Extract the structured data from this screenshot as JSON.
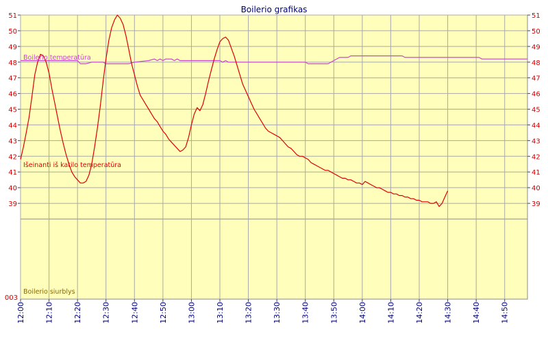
{
  "chart_data": {
    "type": "line",
    "title": "Boilerio grafikas",
    "x_ticks": [
      "12:00",
      "12:10",
      "12:20",
      "12:30",
      "12:40",
      "12:50",
      "13:00",
      "13:10",
      "13:20",
      "13:30",
      "13:40",
      "13:50",
      "14:00",
      "14:10",
      "14:20",
      "14:30",
      "14:40",
      "14:50"
    ],
    "x_range": [
      "12:00",
      "14:58"
    ],
    "y_ticks": [
      39,
      40,
      41,
      42,
      43,
      44,
      45,
      46,
      47,
      48,
      49,
      50,
      51
    ],
    "y_range": [
      38,
      51
    ],
    "lower_panel_label": "003",
    "grid": true,
    "series": [
      {
        "name": "Boilerio temperatūra",
        "color": "#cc44cc",
        "points": [
          [
            "12:00",
            48.1
          ],
          [
            "12:20",
            48.1
          ],
          [
            "12:21",
            47.9
          ],
          [
            "12:23",
            47.9
          ],
          [
            "12:25",
            48.0
          ],
          [
            "12:29",
            48.0
          ],
          [
            "12:30",
            47.9
          ],
          [
            "12:38",
            47.9
          ],
          [
            "12:40",
            48.0
          ],
          [
            "12:45",
            48.1
          ],
          [
            "12:47",
            48.2
          ],
          [
            "12:48",
            48.1
          ],
          [
            "12:49",
            48.2
          ],
          [
            "12:50",
            48.1
          ],
          [
            "12:51",
            48.2
          ],
          [
            "12:53",
            48.2
          ],
          [
            "12:54",
            48.1
          ],
          [
            "12:55",
            48.2
          ],
          [
            "12:56",
            48.1
          ],
          [
            "13:10",
            48.1
          ],
          [
            "13:11",
            48.0
          ],
          [
            "13:12",
            48.1
          ],
          [
            "13:13",
            48.0
          ],
          [
            "13:40",
            48.0
          ],
          [
            "13:41",
            47.9
          ],
          [
            "13:48",
            47.9
          ],
          [
            "13:50",
            48.1
          ],
          [
            "13:52",
            48.3
          ],
          [
            "13:55",
            48.3
          ],
          [
            "13:56",
            48.4
          ],
          [
            "14:10",
            48.4
          ],
          [
            "14:14",
            48.4
          ],
          [
            "14:15",
            48.3
          ],
          [
            "14:41",
            48.3
          ],
          [
            "14:42",
            48.2
          ],
          [
            "14:58",
            48.2
          ]
        ]
      },
      {
        "name": "Išeinanti iš katilo temperatūra",
        "color": "#dd0000",
        "points": [
          [
            "12:00",
            41.8
          ],
          [
            "12:01",
            42.6
          ],
          [
            "12:02",
            43.5
          ],
          [
            "12:03",
            44.5
          ],
          [
            "12:04",
            45.8
          ],
          [
            "12:05",
            47.2
          ],
          [
            "12:06",
            48.0
          ],
          [
            "12:07",
            48.5
          ],
          [
            "12:08",
            48.4
          ],
          [
            "12:09",
            48.0
          ],
          [
            "12:10",
            47.3
          ],
          [
            "12:11",
            46.3
          ],
          [
            "12:12",
            45.4
          ],
          [
            "12:13",
            44.5
          ],
          [
            "12:14",
            43.6
          ],
          [
            "12:15",
            42.8
          ],
          [
            "12:16",
            42.1
          ],
          [
            "12:17",
            41.5
          ],
          [
            "12:18",
            41.0
          ],
          [
            "12:19",
            40.7
          ],
          [
            "12:20",
            40.5
          ],
          [
            "12:21",
            40.3
          ],
          [
            "12:22",
            40.3
          ],
          [
            "12:23",
            40.4
          ],
          [
            "12:24",
            40.8
          ],
          [
            "12:25",
            41.5
          ],
          [
            "12:26",
            42.6
          ],
          [
            "12:27",
            43.8
          ],
          [
            "12:28",
            45.2
          ],
          [
            "12:29",
            46.8
          ],
          [
            "12:30",
            48.2
          ],
          [
            "12:31",
            49.4
          ],
          [
            "12:32",
            50.2
          ],
          [
            "12:33",
            50.7
          ],
          [
            "12:34",
            51.0
          ],
          [
            "12:35",
            50.8
          ],
          [
            "12:36",
            50.4
          ],
          [
            "12:37",
            49.7
          ],
          [
            "12:38",
            48.8
          ],
          [
            "12:39",
            47.9
          ],
          [
            "12:40",
            47.2
          ],
          [
            "12:41",
            46.5
          ],
          [
            "12:42",
            45.9
          ],
          [
            "12:43",
            45.6
          ],
          [
            "12:44",
            45.3
          ],
          [
            "12:45",
            45.0
          ],
          [
            "12:46",
            44.7
          ],
          [
            "12:47",
            44.4
          ],
          [
            "12:48",
            44.2
          ],
          [
            "12:49",
            43.9
          ],
          [
            "12:50",
            43.6
          ],
          [
            "12:51",
            43.4
          ],
          [
            "12:52",
            43.1
          ],
          [
            "12:53",
            42.9
          ],
          [
            "12:54",
            42.7
          ],
          [
            "12:55",
            42.5
          ],
          [
            "12:56",
            42.3
          ],
          [
            "12:57",
            42.4
          ],
          [
            "12:58",
            42.6
          ],
          [
            "12:59",
            43.2
          ],
          [
            "13:00",
            44.0
          ],
          [
            "13:01",
            44.7
          ],
          [
            "13:02",
            45.1
          ],
          [
            "13:03",
            44.9
          ],
          [
            "13:04",
            45.3
          ],
          [
            "13:05",
            46.0
          ],
          [
            "13:06",
            46.8
          ],
          [
            "13:07",
            47.5
          ],
          [
            "13:08",
            48.2
          ],
          [
            "13:09",
            48.8
          ],
          [
            "13:10",
            49.3
          ],
          [
            "13:11",
            49.5
          ],
          [
            "13:12",
            49.6
          ],
          [
            "13:13",
            49.4
          ],
          [
            "13:14",
            48.9
          ],
          [
            "13:15",
            48.4
          ],
          [
            "13:16",
            47.8
          ],
          [
            "13:17",
            47.2
          ],
          [
            "13:18",
            46.6
          ],
          [
            "13:19",
            46.2
          ],
          [
            "13:20",
            45.8
          ],
          [
            "13:21",
            45.4
          ],
          [
            "13:22",
            45.0
          ],
          [
            "13:23",
            44.7
          ],
          [
            "13:24",
            44.4
          ],
          [
            "13:25",
            44.1
          ],
          [
            "13:26",
            43.8
          ],
          [
            "13:27",
            43.6
          ],
          [
            "13:28",
            43.5
          ],
          [
            "13:29",
            43.4
          ],
          [
            "13:30",
            43.3
          ],
          [
            "13:31",
            43.2
          ],
          [
            "13:32",
            43.0
          ],
          [
            "13:33",
            42.8
          ],
          [
            "13:34",
            42.6
          ],
          [
            "13:35",
            42.5
          ],
          [
            "13:36",
            42.3
          ],
          [
            "13:37",
            42.1
          ],
          [
            "13:38",
            42.0
          ],
          [
            "13:39",
            42.0
          ],
          [
            "13:40",
            41.9
          ],
          [
            "13:41",
            41.8
          ],
          [
            "13:42",
            41.6
          ],
          [
            "13:43",
            41.5
          ],
          [
            "13:44",
            41.4
          ],
          [
            "13:45",
            41.3
          ],
          [
            "13:46",
            41.2
          ],
          [
            "13:47",
            41.1
          ],
          [
            "13:48",
            41.1
          ],
          [
            "13:49",
            41.0
          ],
          [
            "13:50",
            40.9
          ],
          [
            "13:51",
            40.8
          ],
          [
            "13:52",
            40.7
          ],
          [
            "13:53",
            40.6
          ],
          [
            "13:54",
            40.6
          ],
          [
            "13:55",
            40.5
          ],
          [
            "13:56",
            40.5
          ],
          [
            "13:57",
            40.4
          ],
          [
            "13:58",
            40.3
          ],
          [
            "13:59",
            40.3
          ],
          [
            "14:00",
            40.2
          ],
          [
            "14:01",
            40.4
          ],
          [
            "14:02",
            40.3
          ],
          [
            "14:03",
            40.2
          ],
          [
            "14:04",
            40.1
          ],
          [
            "14:05",
            40.0
          ],
          [
            "14:06",
            40.0
          ],
          [
            "14:07",
            39.9
          ],
          [
            "14:08",
            39.8
          ],
          [
            "14:09",
            39.7
          ],
          [
            "14:10",
            39.7
          ],
          [
            "14:11",
            39.6
          ],
          [
            "14:12",
            39.6
          ],
          [
            "14:13",
            39.5
          ],
          [
            "14:14",
            39.5
          ],
          [
            "14:15",
            39.4
          ],
          [
            "14:16",
            39.4
          ],
          [
            "14:17",
            39.3
          ],
          [
            "14:18",
            39.3
          ],
          [
            "14:19",
            39.2
          ],
          [
            "14:20",
            39.2
          ],
          [
            "14:21",
            39.1
          ],
          [
            "14:22",
            39.1
          ],
          [
            "14:23",
            39.1
          ],
          [
            "14:24",
            39.0
          ],
          [
            "14:25",
            39.0
          ],
          [
            "14:26",
            39.1
          ],
          [
            "14:27",
            38.8
          ],
          [
            "14:28",
            39.0
          ],
          [
            "14:29",
            39.4
          ],
          [
            "14:30",
            39.8
          ]
        ]
      },
      {
        "name": "Boilerio siurblys",
        "color": "#886600",
        "points": []
      }
    ]
  }
}
